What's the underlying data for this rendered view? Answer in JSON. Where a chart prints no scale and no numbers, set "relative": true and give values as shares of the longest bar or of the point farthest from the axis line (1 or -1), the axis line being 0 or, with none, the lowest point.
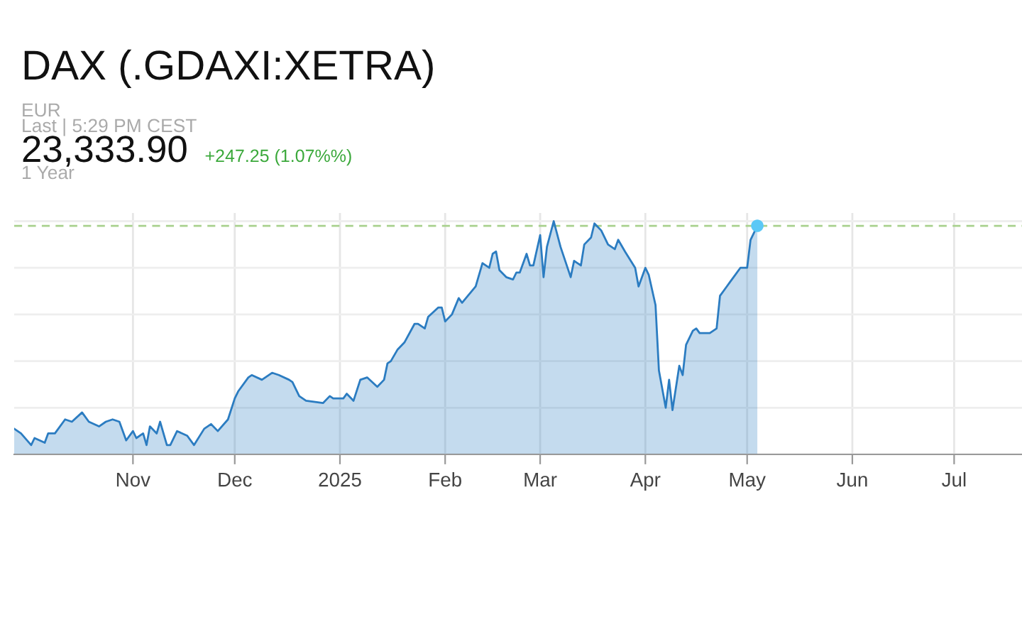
{
  "chart_data": {
    "type": "area",
    "title": "DAX (.GDAXI:XETRA)",
    "subtitle": "EUR",
    "annotations": [
      "Last | 5:29 PM CEST",
      "23,333.90",
      "+247.25 (1.07%%)",
      "1 Year"
    ],
    "relative": true,
    "grid": true,
    "tick_labels": "x",
    "xlim": [
      "2024-09-27",
      "2025-07-21"
    ],
    "xticks": [
      {
        "value": "2024-11-01",
        "label": "Nov"
      },
      {
        "value": "2024-12-01",
        "label": "Dec"
      },
      {
        "value": "2025-01-01",
        "label": "2025"
      },
      {
        "value": "2025-02-01",
        "label": "Feb"
      },
      {
        "value": "2025-03-01",
        "label": "Mar"
      },
      {
        "value": "2025-04-01",
        "label": "Apr"
      },
      {
        "value": "2025-05-01",
        "label": "May"
      },
      {
        "value": "2025-06-01",
        "label": "Jun"
      },
      {
        "value": "2025-07-01",
        "label": "Jul"
      }
    ],
    "ref_lines": [
      {
        "axis": "y",
        "value": 0.98,
        "color": "#a9d18e",
        "line_style": "dashed"
      }
    ],
    "series": [
      {
        "color": "#2b7cc1",
        "x": [
          "2024-09-27",
          "2024-09-29",
          "2024-10-02",
          "2024-10-03",
          "2024-10-06",
          "2024-10-07",
          "2024-10-09",
          "2024-10-12",
          "2024-10-14",
          "2024-10-17",
          "2024-10-19",
          "2024-10-22",
          "2024-10-24",
          "2024-10-26",
          "2024-10-28",
          "2024-10-30",
          "2024-11-01",
          "2024-11-02",
          "2024-11-04",
          "2024-11-05",
          "2024-11-06",
          "2024-11-08",
          "2024-11-09",
          "2024-11-11",
          "2024-11-12",
          "2024-11-14",
          "2024-11-17",
          "2024-11-19",
          "2024-11-22",
          "2024-11-24",
          "2024-11-26",
          "2024-11-29",
          "2024-12-01",
          "2024-12-02",
          "2024-12-05",
          "2024-12-06",
          "2024-12-09",
          "2024-12-12",
          "2024-12-14",
          "2024-12-17",
          "2024-12-18",
          "2024-12-20",
          "2024-12-22",
          "2024-12-27",
          "2024-12-29",
          "2024-12-30",
          "2025-01-02",
          "2025-01-03",
          "2025-01-05",
          "2025-01-07",
          "2025-01-09",
          "2025-01-12",
          "2025-01-14",
          "2025-01-15",
          "2025-01-16",
          "2025-01-18",
          "2025-01-20",
          "2025-01-23",
          "2025-01-24",
          "2025-01-26",
          "2025-01-27",
          "2025-01-30",
          "2025-01-31",
          "2025-02-01",
          "2025-02-03",
          "2025-02-05",
          "2025-02-06",
          "2025-02-10",
          "2025-02-12",
          "2025-02-14",
          "2025-02-15",
          "2025-02-16",
          "2025-02-17",
          "2025-02-19",
          "2025-02-21",
          "2025-02-22",
          "2025-02-23",
          "2025-02-25",
          "2025-02-26",
          "2025-02-27",
          "2025-03-01",
          "2025-03-02",
          "2025-03-03",
          "2025-03-05",
          "2025-03-07",
          "2025-03-10",
          "2025-03-11",
          "2025-03-13",
          "2025-03-14",
          "2025-03-16",
          "2025-03-17",
          "2025-03-19",
          "2025-03-21",
          "2025-03-23",
          "2025-03-24",
          "2025-03-26",
          "2025-03-29",
          "2025-03-30",
          "2025-04-01",
          "2025-04-02",
          "2025-04-04",
          "2025-04-05",
          "2025-04-07",
          "2025-04-08",
          "2025-04-09",
          "2025-04-11",
          "2025-04-12",
          "2025-04-13",
          "2025-04-15",
          "2025-04-16",
          "2025-04-17",
          "2025-04-20",
          "2025-04-22",
          "2025-04-23",
          "2025-04-25",
          "2025-04-26",
          "2025-04-27",
          "2025-04-29",
          "2025-05-01",
          "2025-05-02",
          "2025-05-04"
        ],
        "values": [
          0.11,
          0.09,
          0.04,
          0.07,
          0.05,
          0.09,
          0.09,
          0.15,
          0.14,
          0.18,
          0.14,
          0.12,
          0.14,
          0.15,
          0.14,
          0.06,
          0.1,
          0.07,
          0.09,
          0.04,
          0.12,
          0.09,
          0.14,
          0.04,
          0.04,
          0.1,
          0.08,
          0.04,
          0.11,
          0.13,
          0.1,
          0.15,
          0.24,
          0.27,
          0.33,
          0.34,
          0.32,
          0.35,
          0.34,
          0.32,
          0.31,
          0.25,
          0.23,
          0.22,
          0.25,
          0.24,
          0.24,
          0.26,
          0.23,
          0.32,
          0.33,
          0.29,
          0.32,
          0.39,
          0.4,
          0.45,
          0.48,
          0.56,
          0.56,
          0.54,
          0.59,
          0.63,
          0.63,
          0.57,
          0.6,
          0.67,
          0.65,
          0.72,
          0.82,
          0.8,
          0.86,
          0.87,
          0.79,
          0.76,
          0.75,
          0.78,
          0.78,
          0.86,
          0.81,
          0.81,
          0.94,
          0.76,
          0.89,
          1.0,
          0.89,
          0.76,
          0.83,
          0.81,
          0.9,
          0.93,
          0.99,
          0.96,
          0.9,
          0.88,
          0.92,
          0.87,
          0.8,
          0.72,
          0.8,
          0.77,
          0.64,
          0.36,
          0.2,
          0.32,
          0.19,
          0.38,
          0.34,
          0.47,
          0.53,
          0.54,
          0.52,
          0.52,
          0.54,
          0.68,
          0.72,
          0.74,
          0.76,
          0.8,
          0.8,
          0.92,
          0.98
        ]
      },
      {
        "type": "scatter",
        "color": "#5bc8f6",
        "marker": "circle",
        "x": [
          "2025-05-04"
        ],
        "values": [
          0.98
        ]
      }
    ]
  }
}
